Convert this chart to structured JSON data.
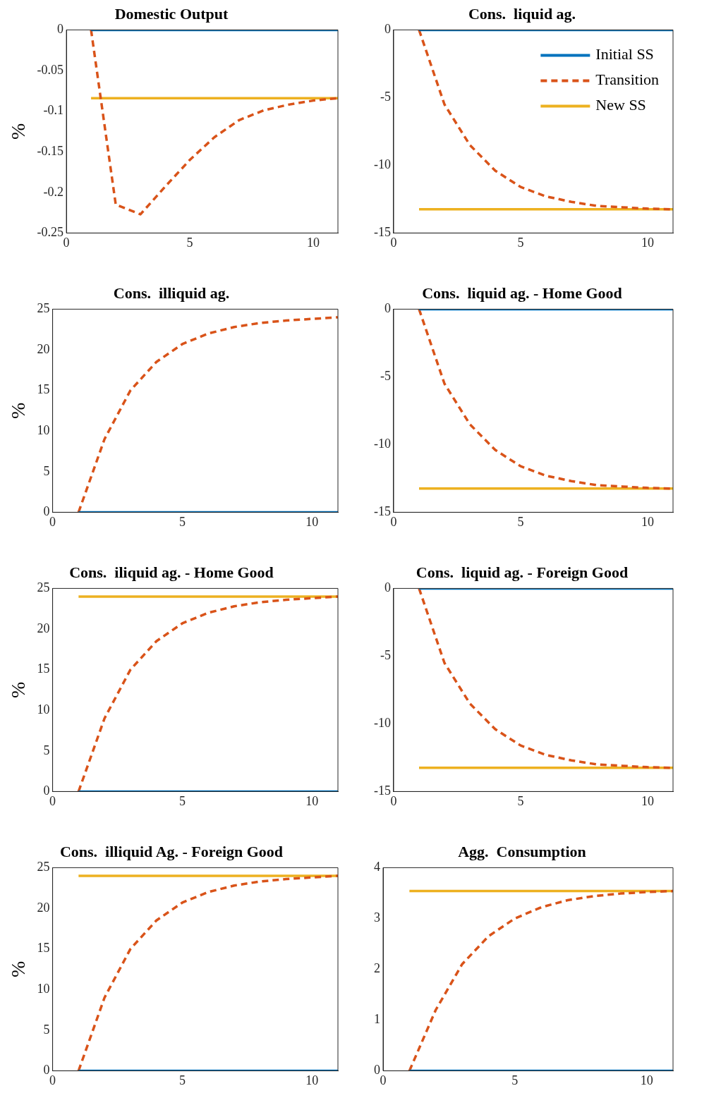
{
  "chart_data": [
    {
      "type": "line",
      "title": "Domestic Output",
      "ylabel": "%",
      "xlim": [
        0,
        11
      ],
      "xticks": [
        0,
        5,
        10
      ],
      "ylim": [
        -0.25,
        0
      ],
      "yticks": [
        -0.25,
        -0.2,
        -0.15,
        -0.1,
        -0.05,
        0
      ],
      "legend": false,
      "marker": "none",
      "series": [
        {
          "color": "#0072bd",
          "line_style": "solid",
          "x": [
            1,
            11
          ],
          "values": [
            0,
            0
          ]
        },
        {
          "color": "#d95319",
          "line_style": "dashed",
          "x": [
            1,
            2,
            3,
            4,
            5,
            6,
            7,
            8,
            9,
            10,
            11
          ],
          "values": [
            0,
            -0.215,
            -0.227,
            -0.193,
            -0.16,
            -0.132,
            -0.111,
            -0.099,
            -0.092,
            -0.087,
            -0.084
          ]
        },
        {
          "color": "#edb120",
          "line_style": "solid",
          "x": [
            1,
            11
          ],
          "values": [
            -0.084,
            -0.084
          ]
        }
      ]
    },
    {
      "type": "line",
      "title": "Cons.  liquid ag.",
      "xlim": [
        0,
        11
      ],
      "xticks": [
        0,
        5,
        10
      ],
      "ylim": [
        -15,
        0
      ],
      "yticks": [
        -15,
        -10,
        -5,
        0
      ],
      "legend": "top right",
      "marker": "none",
      "series": [
        {
          "name": "Initial SS",
          "color": "#0072bd",
          "line_style": "solid",
          "x": [
            1,
            11
          ],
          "values": [
            0,
            0
          ]
        },
        {
          "name": "Transition",
          "color": "#d95319",
          "line_style": "dashed",
          "x": [
            1,
            2,
            3,
            4,
            5,
            6,
            7,
            8,
            9,
            10,
            11
          ],
          "values": [
            0,
            -5.5,
            -8.5,
            -10.4,
            -11.6,
            -12.3,
            -12.7,
            -13.0,
            -13.1,
            -13.2,
            -13.25
          ]
        },
        {
          "name": "New SS",
          "color": "#edb120",
          "line_style": "solid",
          "x": [
            1,
            11
          ],
          "values": [
            -13.25,
            -13.25
          ]
        }
      ]
    },
    {
      "type": "line",
      "title": "Cons.  illiquid ag.",
      "ylabel": "%",
      "xlim": [
        0,
        11
      ],
      "xticks": [
        0,
        5,
        10
      ],
      "ylim": [
        0,
        25
      ],
      "yticks": [
        0,
        5,
        10,
        15,
        20,
        25
      ],
      "legend": false,
      "marker": "none",
      "series": [
        {
          "color": "#0072bd",
          "line_style": "solid",
          "x": [
            1,
            11
          ],
          "values": [
            0,
            0
          ]
        },
        {
          "color": "#d95319",
          "line_style": "dashed",
          "x": [
            1,
            2,
            3,
            4,
            5,
            6,
            7,
            8,
            9,
            10,
            11
          ],
          "values": [
            0,
            9,
            15,
            18.5,
            20.7,
            22,
            22.8,
            23.3,
            23.6,
            23.8,
            24
          ]
        }
      ]
    },
    {
      "type": "line",
      "title": "Cons.  liquid ag. - Home Good",
      "xlim": [
        0,
        11
      ],
      "xticks": [
        0,
        5,
        10
      ],
      "ylim": [
        -15,
        0
      ],
      "yticks": [
        -15,
        -10,
        -5,
        0
      ],
      "legend": false,
      "marker": "none",
      "series": [
        {
          "color": "#0072bd",
          "line_style": "solid",
          "x": [
            1,
            11
          ],
          "values": [
            0,
            0
          ]
        },
        {
          "color": "#d95319",
          "line_style": "dashed",
          "x": [
            1,
            2,
            3,
            4,
            5,
            6,
            7,
            8,
            9,
            10,
            11
          ],
          "values": [
            0,
            -5.5,
            -8.5,
            -10.4,
            -11.6,
            -12.3,
            -12.7,
            -13.0,
            -13.1,
            -13.2,
            -13.25
          ]
        },
        {
          "color": "#edb120",
          "line_style": "solid",
          "x": [
            1,
            11
          ],
          "values": [
            -13.25,
            -13.25
          ]
        }
      ]
    },
    {
      "type": "line",
      "title": "Cons.  iliquid ag. - Home Good",
      "ylabel": "%",
      "xlim": [
        0,
        11
      ],
      "xticks": [
        0,
        5,
        10
      ],
      "ylim": [
        0,
        25
      ],
      "yticks": [
        0,
        5,
        10,
        15,
        20,
        25
      ],
      "legend": false,
      "marker": "none",
      "series": [
        {
          "color": "#0072bd",
          "line_style": "solid",
          "x": [
            1,
            11
          ],
          "values": [
            0,
            0
          ]
        },
        {
          "color": "#d95319",
          "line_style": "dashed",
          "x": [
            1,
            2,
            3,
            4,
            5,
            6,
            7,
            8,
            9,
            10,
            11
          ],
          "values": [
            0,
            9,
            15,
            18.5,
            20.7,
            22,
            22.8,
            23.3,
            23.6,
            23.8,
            24
          ]
        },
        {
          "color": "#edb120",
          "line_style": "solid",
          "x": [
            1,
            11
          ],
          "values": [
            24,
            24
          ]
        }
      ]
    },
    {
      "type": "line",
      "title": "Cons.  liquid ag. - Foreign Good",
      "xlim": [
        0,
        11
      ],
      "xticks": [
        0,
        5,
        10
      ],
      "ylim": [
        -15,
        0
      ],
      "yticks": [
        -15,
        -10,
        -5,
        0
      ],
      "legend": false,
      "marker": "none",
      "series": [
        {
          "color": "#0072bd",
          "line_style": "solid",
          "x": [
            1,
            11
          ],
          "values": [
            0,
            0
          ]
        },
        {
          "color": "#d95319",
          "line_style": "dashed",
          "x": [
            1,
            2,
            3,
            4,
            5,
            6,
            7,
            8,
            9,
            10,
            11
          ],
          "values": [
            0,
            -5.5,
            -8.5,
            -10.4,
            -11.6,
            -12.3,
            -12.7,
            -13.0,
            -13.1,
            -13.2,
            -13.25
          ]
        },
        {
          "color": "#edb120",
          "line_style": "solid",
          "x": [
            1,
            11
          ],
          "values": [
            -13.25,
            -13.25
          ]
        }
      ]
    },
    {
      "type": "line",
      "title": "Cons.  illiquid Ag. - Foreign Good",
      "ylabel": "%",
      "xlim": [
        0,
        11
      ],
      "xticks": [
        0,
        5,
        10
      ],
      "ylim": [
        0,
        25
      ],
      "yticks": [
        0,
        5,
        10,
        15,
        20,
        25
      ],
      "legend": false,
      "marker": "none",
      "series": [
        {
          "color": "#0072bd",
          "line_style": "solid",
          "x": [
            1,
            11
          ],
          "values": [
            0,
            0
          ]
        },
        {
          "color": "#d95319",
          "line_style": "dashed",
          "x": [
            1,
            2,
            3,
            4,
            5,
            6,
            7,
            8,
            9,
            10,
            11
          ],
          "values": [
            0,
            9,
            15,
            18.5,
            20.7,
            22,
            22.8,
            23.3,
            23.6,
            23.8,
            24
          ]
        },
        {
          "color": "#edb120",
          "line_style": "solid",
          "x": [
            1,
            11
          ],
          "values": [
            24,
            24
          ]
        }
      ]
    },
    {
      "type": "line",
      "title": "Agg.  Consumption",
      "xlim": [
        0,
        11
      ],
      "xticks": [
        0,
        5,
        10
      ],
      "ylim": [
        0,
        4
      ],
      "yticks": [
        0,
        1,
        2,
        3,
        4
      ],
      "legend": false,
      "marker": "none",
      "series": [
        {
          "color": "#0072bd",
          "line_style": "solid",
          "x": [
            1,
            11
          ],
          "values": [
            0,
            0
          ]
        },
        {
          "color": "#d95319",
          "line_style": "dashed",
          "x": [
            1,
            2,
            3,
            4,
            5,
            6,
            7,
            8,
            9,
            10,
            11
          ],
          "values": [
            0,
            1.2,
            2.1,
            2.65,
            3.0,
            3.22,
            3.36,
            3.44,
            3.49,
            3.52,
            3.54
          ]
        },
        {
          "color": "#edb120",
          "line_style": "solid",
          "x": [
            1,
            11
          ],
          "values": [
            3.54,
            3.54
          ]
        }
      ]
    }
  ]
}
